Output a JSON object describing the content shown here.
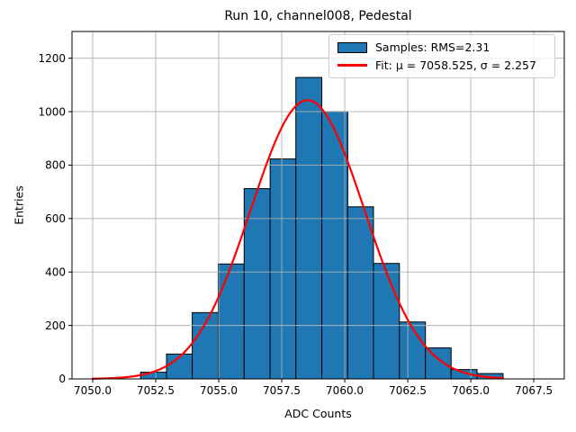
{
  "chart": {
    "title": "Run 10, channel008, Pedestal",
    "xlabel": "ADC Counts",
    "ylabel": "Entries"
  },
  "legend": {
    "samples_label": "Samples: RMS=2.31",
    "fit_label": "Fit: μ = 7058.525, σ = 2.257"
  },
  "chart_data": {
    "type": "bar",
    "subtype": "histogram-with-gaussian-fit",
    "title": "Run 10, channel008, Pedestal",
    "xlabel": "ADC Counts",
    "ylabel": "Entries",
    "xlim": [
      7049.18,
      7068.71
    ],
    "ylim": [
      0,
      1300
    ],
    "grid": true,
    "grid_color": "#b0b0b0",
    "legend_position": "upper right",
    "x_ticks": {
      "values": [
        7050.0,
        7052.5,
        7055.0,
        7057.5,
        7060.0,
        7062.5,
        7065.0,
        7067.5
      ],
      "labels": [
        "7050.0",
        "7052.5",
        "7055.0",
        "7057.5",
        "7060.0",
        "7062.5",
        "7065.0",
        "7067.5"
      ]
    },
    "y_ticks": {
      "values": [
        0,
        200,
        400,
        600,
        800,
        1000,
        1200
      ],
      "labels": [
        "0",
        "200",
        "400",
        "600",
        "800",
        "1000",
        "1200"
      ]
    },
    "histogram": {
      "label": "Samples: RMS=2.31",
      "rms": 2.31,
      "bin_edges": [
        7051.9,
        7052.93,
        7053.95,
        7054.98,
        7056.01,
        7057.04,
        7058.06,
        7059.09,
        7060.12,
        7061.14,
        7062.17,
        7063.2,
        7064.22,
        7065.25,
        7066.28
      ],
      "counts": [
        25,
        93,
        248,
        430,
        712,
        823,
        1128,
        1000,
        644,
        432,
        213,
        116,
        35,
        20
      ],
      "fill_color": "#1f77b4",
      "edge_color": "#000000"
    },
    "fit": {
      "label": "Fit: μ = 7058.525, σ = 2.257",
      "mu": 7058.525,
      "sigma": 2.257,
      "amplitude": 1043,
      "x_start": 7050.0,
      "x_end": 7066.28,
      "color": "#ff0000"
    }
  }
}
